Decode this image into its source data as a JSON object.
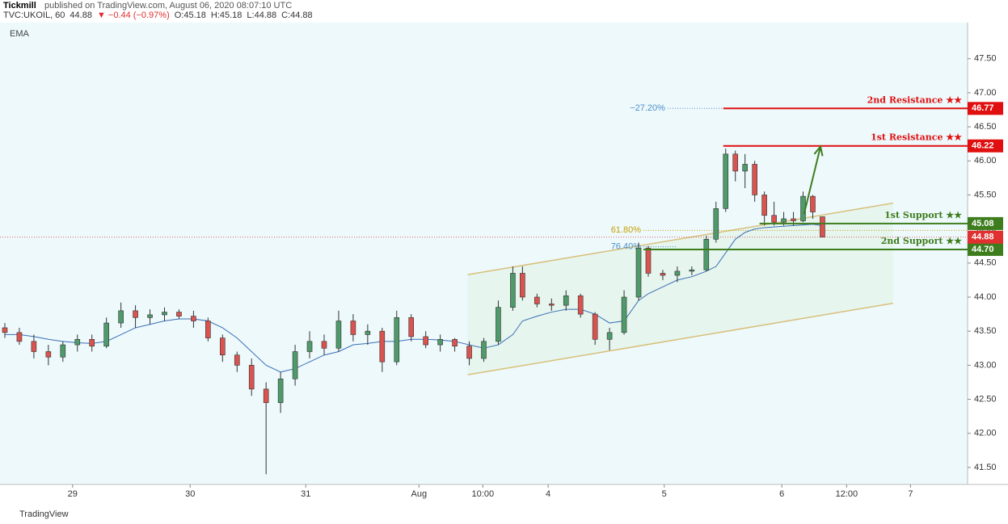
{
  "chart_data": {
    "type": "candlestick",
    "publisher": "Tickmill",
    "published": "published on TradingView.com, August 06, 2020 08:07:10 UTC",
    "quote": [
      "TVC:UKOIL, 60",
      "44.88",
      "▼ −0.44 (−0.97%)",
      "O:45.18",
      "H:45.18",
      "L:44.88",
      "C:44.88"
    ],
    "indicator": "EMA",
    "footer": "TradingView",
    "xlim": [
      0,
      200
    ],
    "ylim": [
      41.25,
      48.03
    ],
    "xticks": [
      {
        "value": 15,
        "label": "29"
      },
      {
        "value": 39.3,
        "label": "30"
      },
      {
        "value": 63.2,
        "label": "31"
      },
      {
        "value": 86.6,
        "label": "Aug"
      },
      {
        "value": 99.8,
        "label": "10:00"
      },
      {
        "value": 113.3,
        "label": "4"
      },
      {
        "value": 137.3,
        "label": "5"
      },
      {
        "value": 161.6,
        "label": "6"
      },
      {
        "value": 175,
        "label": "12:00"
      },
      {
        "value": 188.2,
        "label": "7"
      }
    ],
    "yticks": [
      {
        "value": 41.5,
        "label": "41.50"
      },
      {
        "value": 42,
        "label": "42.00"
      },
      {
        "value": 42.5,
        "label": "42.50"
      },
      {
        "value": 43,
        "label": "43.00"
      },
      {
        "value": 43.5,
        "label": "43.50"
      },
      {
        "value": 44,
        "label": "44.00"
      },
      {
        "value": 44.5,
        "label": "44.50"
      },
      {
        "value": 45,
        "label": "45.00"
      },
      {
        "value": 45.5,
        "label": "45.50"
      },
      {
        "value": 46,
        "label": "46.00"
      },
      {
        "value": 46.5,
        "label": "46.50"
      },
      {
        "value": 47,
        "label": "47.00"
      },
      {
        "value": 47.5,
        "label": "47.50"
      }
    ],
    "up_color": "#4e9a6a",
    "down_color": "#d9534f",
    "x": [
      1,
      4,
      7,
      10,
      13,
      16,
      19,
      22,
      25,
      28,
      31,
      34,
      37,
      40,
      43,
      46,
      49,
      52,
      55,
      58,
      61,
      64,
      67,
      70,
      73,
      76,
      79,
      82,
      85,
      88,
      91,
      94,
      97,
      100,
      103,
      106,
      108,
      111,
      114,
      117,
      120,
      123,
      126,
      129,
      132,
      134,
      137,
      140,
      143,
      146,
      148,
      150,
      152,
      154,
      156,
      158,
      160,
      162,
      164,
      166,
      168,
      170
    ],
    "open": [
      43.55,
      43.48,
      43.35,
      43.2,
      43.12,
      43.3,
      43.38,
      43.28,
      43.62,
      43.8,
      43.7,
      43.74,
      43.78,
      43.72,
      43.65,
      43.4,
      43.15,
      43.0,
      42.65,
      42.45,
      42.8,
      43.2,
      43.35,
      43.25,
      43.65,
      43.45,
      43.5,
      43.05,
      43.7,
      43.42,
      43.3,
      43.38,
      43.28,
      43.1,
      43.35,
      43.85,
      44.35,
      44.0,
      43.9,
      43.88,
      44.02,
      43.75,
      43.38,
      43.48,
      44.0,
      44.72,
      44.35,
      44.32,
      44.38,
      44.4,
      44.85,
      45.3,
      46.1,
      45.85,
      45.95,
      45.5,
      45.2,
      45.1,
      45.15,
      45.12,
      45.48,
      45.18
    ],
    "high": [
      43.62,
      43.55,
      43.45,
      43.3,
      43.35,
      43.45,
      43.45,
      43.7,
      43.92,
      43.88,
      43.82,
      43.85,
      43.82,
      43.8,
      43.7,
      43.45,
      43.2,
      43.1,
      42.75,
      42.9,
      43.3,
      43.5,
      43.45,
      43.8,
      43.75,
      43.6,
      43.55,
      43.8,
      43.75,
      43.5,
      43.45,
      43.4,
      43.35,
      43.4,
      43.95,
      44.45,
      44.45,
      44.05,
      43.98,
      44.1,
      44.05,
      43.78,
      43.55,
      44.1,
      44.8,
      44.75,
      44.4,
      44.45,
      44.45,
      44.9,
      45.4,
      46.18,
      46.15,
      46.1,
      46.0,
      45.55,
      45.4,
      45.25,
      45.25,
      45.55,
      45.5,
      45.18
    ],
    "low": [
      43.4,
      43.3,
      43.1,
      43.0,
      43.05,
      43.2,
      43.2,
      43.25,
      43.55,
      43.55,
      43.6,
      43.65,
      43.68,
      43.55,
      43.35,
      43.05,
      42.9,
      42.55,
      41.4,
      42.3,
      42.7,
      43.1,
      43.15,
      43.2,
      43.35,
      43.3,
      42.9,
      43.0,
      43.35,
      43.25,
      43.2,
      43.2,
      43.0,
      43.05,
      43.3,
      43.8,
      43.95,
      43.85,
      43.8,
      43.8,
      43.7,
      43.3,
      43.22,
      43.45,
      43.95,
      44.3,
      44.25,
      44.22,
      44.32,
      44.38,
      44.8,
      45.25,
      45.7,
      45.6,
      45.4,
      45.05,
      45.05,
      45.05,
      45.05,
      45.1,
      45.15,
      44.88
    ],
    "close": [
      43.48,
      43.35,
      43.2,
      43.12,
      43.3,
      43.38,
      43.28,
      43.62,
      43.8,
      43.7,
      43.74,
      43.78,
      43.72,
      43.65,
      43.4,
      43.15,
      43.0,
      42.65,
      42.45,
      42.8,
      43.2,
      43.35,
      43.25,
      43.65,
      43.45,
      43.5,
      43.05,
      43.7,
      43.42,
      43.3,
      43.38,
      43.28,
      43.1,
      43.35,
      43.85,
      44.35,
      44.0,
      43.9,
      43.88,
      44.02,
      43.75,
      43.38,
      43.48,
      44.0,
      44.72,
      44.35,
      44.32,
      44.38,
      44.4,
      44.85,
      45.3,
      46.1,
      45.85,
      45.95,
      45.5,
      45.2,
      45.1,
      45.15,
      45.12,
      45.48,
      45.25,
      44.88
    ],
    "ema_color": "#3a6fb5",
    "ema": [
      43.45,
      43.45,
      43.42,
      43.38,
      43.35,
      43.33,
      43.32,
      43.35,
      43.45,
      43.55,
      43.6,
      43.65,
      43.68,
      43.68,
      43.65,
      43.55,
      43.4,
      43.2,
      43.0,
      42.9,
      42.95,
      43.05,
      43.15,
      43.2,
      43.3,
      43.32,
      43.35,
      43.35,
      43.38,
      43.38,
      43.37,
      43.35,
      43.3,
      43.25,
      43.3,
      43.45,
      43.65,
      43.72,
      43.78,
      43.82,
      43.82,
      43.75,
      43.62,
      43.65,
      43.95,
      44.05,
      44.15,
      44.25,
      44.3,
      44.38,
      44.45,
      44.65,
      44.85,
      44.95,
      45.0,
      45.02,
      45.03,
      45.04,
      45.05,
      45.06,
      45.07,
      45.05
    ],
    "last_price": {
      "value": 44.88,
      "label": "44.88",
      "color": "#e03030"
    },
    "levels": [
      {
        "name": "2nd Resistance ★★",
        "value": 46.77,
        "label": "46.77",
        "color": "#e01010",
        "x_start": 149.5
      },
      {
        "name": "1st Resistance ★★",
        "value": 46.22,
        "label": "46.22",
        "color": "#e01010",
        "x_start": 149.5
      },
      {
        "name": "1st Support ★★",
        "value": 45.08,
        "label": "45.08",
        "color": "#3e7d1e",
        "x_start": 157
      },
      {
        "name": "2nd Support ★★",
        "value": 44.7,
        "label": "44.70",
        "color": "#3e7d1e",
        "x_start": 133
      }
    ],
    "fib": [
      {
        "label": "−27.20%",
        "value": 46.77,
        "color": "#4a90c8",
        "x": [
          138,
          149.5
        ]
      },
      {
        "label": "61.80%",
        "value": 44.98,
        "color": "#c8a000",
        "x": [
          133,
          200
        ]
      },
      {
        "label": "76.40%",
        "value": 44.74,
        "color": "#4a90c8",
        "x": [
          133,
          140
        ]
      }
    ],
    "channel": {
      "color": "#d8c07a",
      "fill": "#e4f4ea",
      "x": [
        96.7,
        184.6
      ],
      "upper": [
        44.33,
        45.38
      ],
      "lower": [
        42.86,
        43.91
      ]
    },
    "arrow": {
      "color": "#3e7d1e",
      "x": [
        166.2,
        169.6
      ],
      "values": [
        45.22,
        46.21
      ]
    }
  }
}
